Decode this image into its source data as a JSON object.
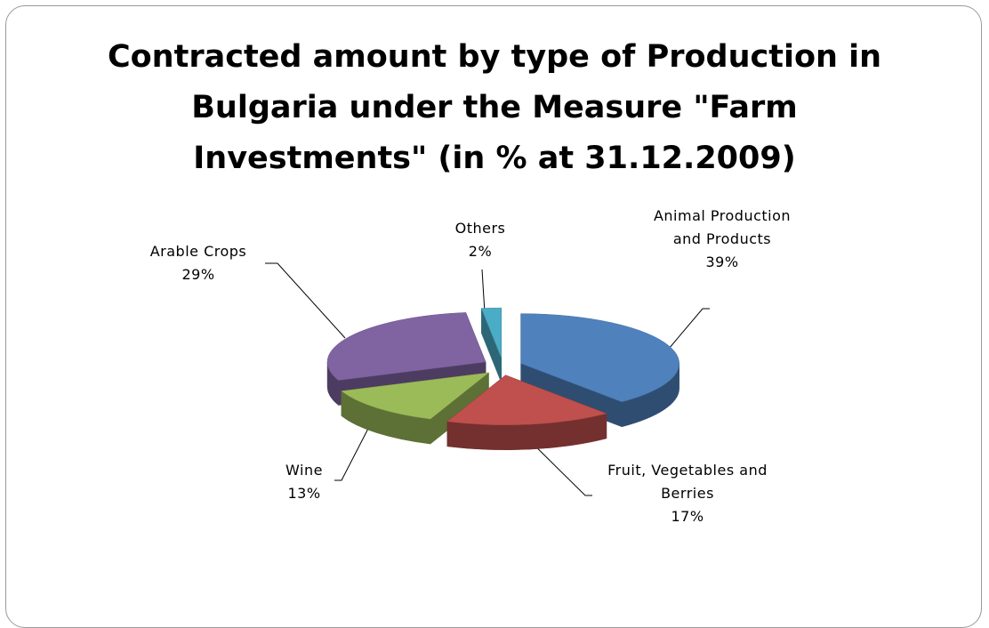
{
  "chart_data": {
    "type": "pie3d",
    "title": "Contracted amount by type of Production in Bulgaria under the Measure \"Farm Investments\" (in % at 31.12.2009)",
    "categories": [
      "Animal Production and Products",
      "Fruit, Vegetables and Berries",
      "Wine",
      "Arable Crops",
      "Others"
    ],
    "values": [
      39,
      17,
      13,
      29,
      2
    ],
    "value_labels": [
      "39%",
      "17%",
      "13%",
      "29%",
      "2%"
    ],
    "colors": [
      "#4f81bd",
      "#c0504d",
      "#9bbb59",
      "#8064a2",
      "#4bacc6"
    ]
  }
}
